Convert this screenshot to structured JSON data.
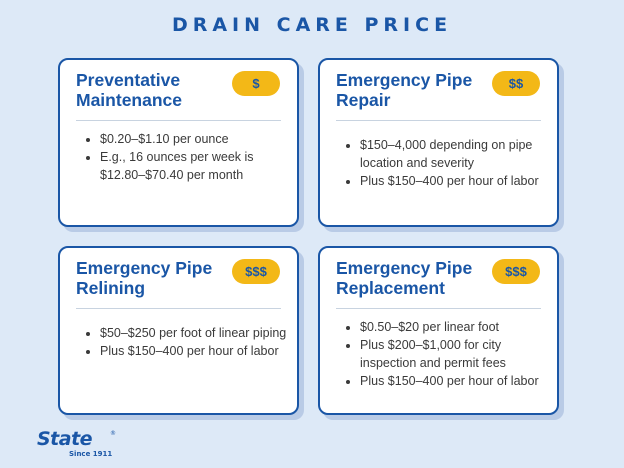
{
  "title": "DRAIN CARE PRICE",
  "cards": [
    {
      "title": "Preventative Maintenance",
      "badge": "$",
      "items": [
        "$0.20–$1.10 per ounce",
        "E.g., 16 ounces per week is $12.80–$70.40 per month"
      ]
    },
    {
      "title": "Emergency Pipe Repair",
      "badge": "$$",
      "items": [
        "$150–4,000 depending on pipe location and severity",
        "Plus $150–400 per hour of labor"
      ]
    },
    {
      "title": "Emergency Pipe Relining",
      "badge": "$$$",
      "items": [
        "$50–$250 per foot of linear piping",
        "Plus $150–400 per hour of labor"
      ]
    },
    {
      "title": "Emergency Pipe Replacement",
      "badge": "$$$",
      "items": [
        "$0.50–$20 per linear foot",
        "Plus $200–$1,000 for city inspection and permit fees",
        "Plus $150–400 per hour of labor"
      ]
    }
  ],
  "logo": {
    "name": "State",
    "registered": "®",
    "tagline": "Since 1911",
    "color": "#1a56a6"
  },
  "colors": {
    "background": "#dde9f7",
    "accent": "#1a56a6",
    "badge": "#f3b817"
  }
}
